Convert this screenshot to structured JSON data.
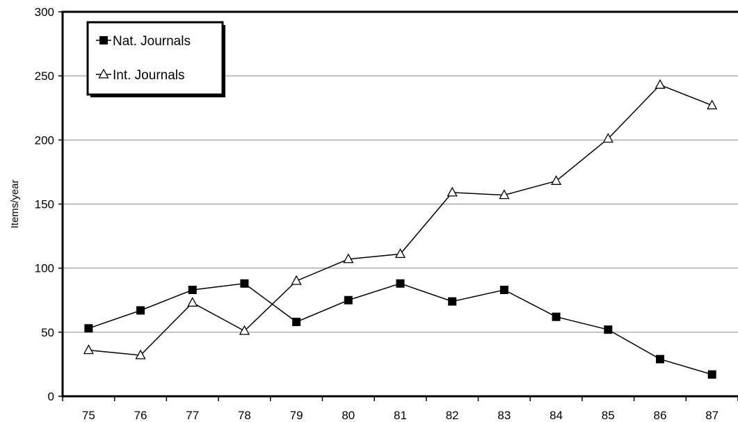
{
  "chart_data": {
    "type": "line",
    "title": "",
    "xlabel": "",
    "ylabel": "Items/year",
    "categories": [
      "75",
      "76",
      "77",
      "78",
      "79",
      "80",
      "81",
      "82",
      "83",
      "84",
      "85",
      "86",
      "87"
    ],
    "ylim": [
      0,
      300
    ],
    "yticks": [
      0,
      50,
      100,
      150,
      200,
      250,
      300
    ],
    "grid": "horizontal",
    "legend_position": "top-left",
    "series": [
      {
        "name": "Nat. Journals",
        "marker": "filled-square",
        "color": "#000000",
        "values": [
          53,
          67,
          83,
          88,
          58,
          75,
          88,
          74,
          83,
          62,
          52,
          29,
          17
        ]
      },
      {
        "name": "Int. Journals",
        "marker": "open-triangle",
        "color": "#000000",
        "values": [
          36,
          32,
          73,
          51,
          90,
          107,
          111,
          159,
          157,
          168,
          201,
          243,
          227
        ]
      }
    ]
  }
}
